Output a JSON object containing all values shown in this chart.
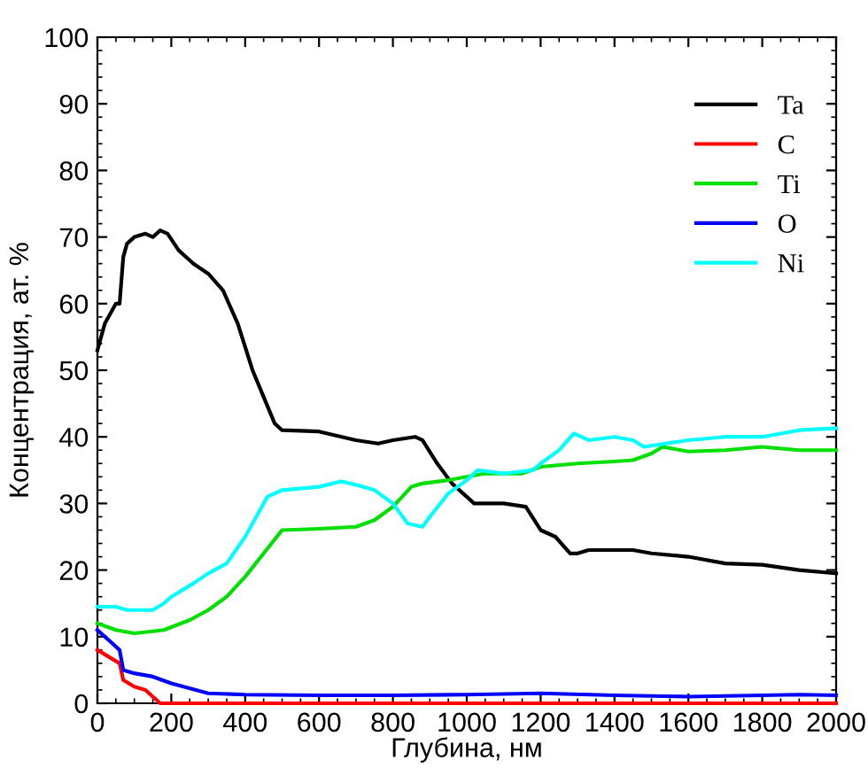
{
  "chart_data": {
    "type": "line",
    "xlabel": "Глубина, нм",
    "ylabel": "Концентрация, ат. %",
    "xlim": [
      0,
      2000
    ],
    "ylim": [
      0,
      100
    ],
    "xticks": [
      0,
      200,
      400,
      600,
      800,
      1000,
      1200,
      1400,
      1600,
      1800,
      2000
    ],
    "yticks": [
      0,
      10,
      20,
      30,
      40,
      50,
      60,
      70,
      80,
      90,
      100
    ],
    "grid": false,
    "legend": "top right",
    "marker": "none",
    "line_style": "solid",
    "series": [
      {
        "name": "Ta",
        "color": "#000000",
        "x": [
          0,
          20,
          50,
          60,
          70,
          80,
          100,
          130,
          150,
          170,
          190,
          220,
          260,
          300,
          340,
          380,
          420,
          450,
          480,
          500,
          600,
          700,
          760,
          800,
          860,
          880,
          920,
          960,
          1000,
          1020,
          1100,
          1160,
          1200,
          1240,
          1280,
          1300,
          1330,
          1400,
          1450,
          1500,
          1600,
          1700,
          1800,
          1900,
          2000
        ],
        "values": [
          53,
          57,
          60,
          60,
          67,
          69,
          70,
          70.5,
          70,
          71,
          70.5,
          68,
          66,
          64.5,
          62,
          57,
          50,
          46,
          42,
          41,
          40.8,
          39.5,
          39,
          39.5,
          40,
          39.5,
          36,
          33,
          31,
          30,
          30,
          29.5,
          26,
          25,
          22.5,
          22.5,
          23,
          23,
          23,
          22.5,
          22,
          21,
          20.8,
          20,
          19.5
        ]
      },
      {
        "name": "C",
        "color": "#ff0000",
        "x": [
          0,
          30,
          60,
          70,
          100,
          130,
          150,
          170,
          2000
        ],
        "values": [
          8,
          7,
          6,
          3.5,
          2.5,
          2,
          1,
          0,
          0
        ]
      },
      {
        "name": "Ti",
        "color": "#00e000",
        "x": [
          0,
          50,
          100,
          150,
          180,
          250,
          300,
          350,
          400,
          450,
          500,
          600,
          700,
          750,
          800,
          850,
          880,
          950,
          1000,
          1050,
          1150,
          1200,
          1300,
          1400,
          1450,
          1500,
          1530,
          1600,
          1700,
          1800,
          1900,
          2000
        ],
        "values": [
          12,
          11,
          10.5,
          10.8,
          11,
          12.5,
          14,
          16,
          19,
          22.5,
          26,
          26.2,
          26.5,
          27.5,
          29.5,
          32.5,
          33,
          33.5,
          34,
          34.5,
          34.5,
          35.5,
          36,
          36.3,
          36.5,
          37.5,
          38.5,
          37.8,
          38,
          38.5,
          38,
          38
        ]
      },
      {
        "name": "O",
        "color": "#0000ff",
        "x": [
          0,
          40,
          60,
          70,
          100,
          150,
          200,
          300,
          400,
          600,
          800,
          1000,
          1200,
          1400,
          1600,
          1800,
          1900,
          2000
        ],
        "values": [
          11,
          9,
          8,
          5,
          4.5,
          4,
          3,
          1.5,
          1.3,
          1.2,
          1.2,
          1.3,
          1.5,
          1.2,
          1,
          1.2,
          1.3,
          1.2
        ]
      },
      {
        "name": "Ni",
        "color": "#00ffff",
        "x": [
          0,
          50,
          80,
          150,
          180,
          200,
          260,
          300,
          350,
          400,
          430,
          460,
          500,
          600,
          660,
          700,
          750,
          800,
          840,
          880,
          900,
          950,
          1000,
          1030,
          1100,
          1180,
          1200,
          1250,
          1290,
          1330,
          1400,
          1450,
          1480,
          1600,
          1700,
          1800,
          1900,
          2000
        ],
        "values": [
          14.5,
          14.5,
          14,
          14,
          15,
          16,
          18,
          19.5,
          21,
          25,
          28,
          31,
          32,
          32.5,
          33.3,
          32.8,
          32,
          30,
          27,
          26.5,
          28,
          31.5,
          33.5,
          35,
          34.5,
          35,
          36,
          38,
          40.5,
          39.5,
          40,
          39.5,
          38.5,
          39.5,
          40,
          40,
          41,
          41.3
        ]
      }
    ]
  }
}
